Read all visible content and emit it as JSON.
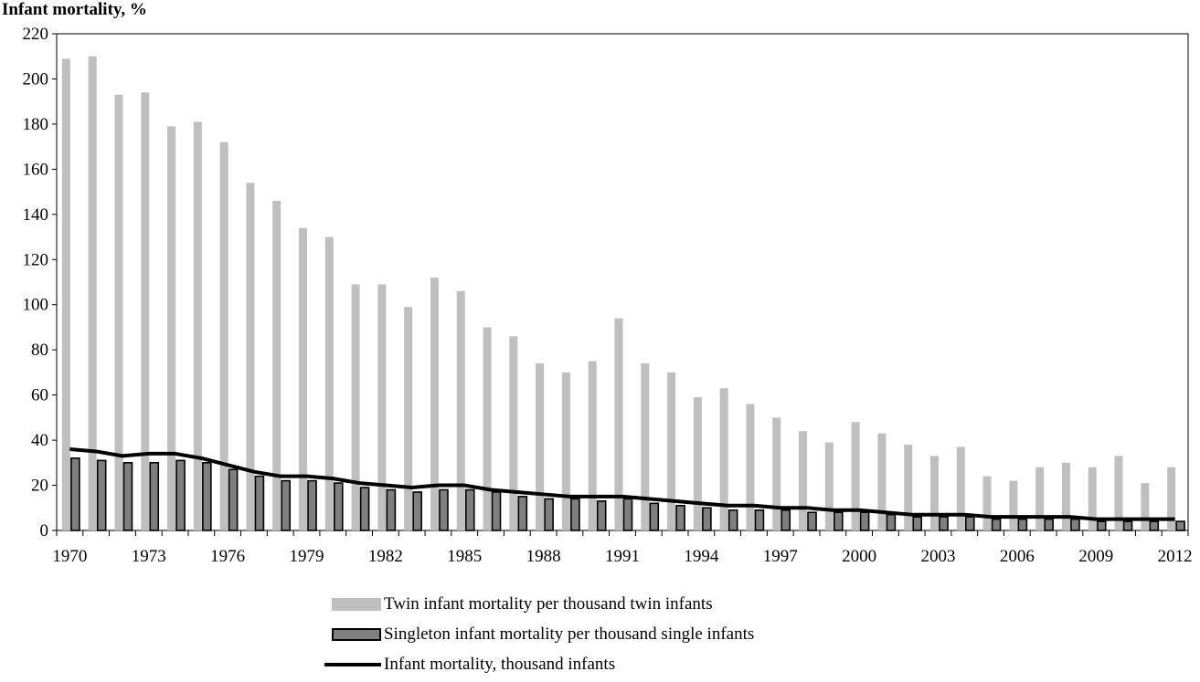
{
  "chart_data": {
    "type": "bar",
    "title": "Infant mortality, %",
    "years": [
      1970,
      1971,
      1972,
      1973,
      1974,
      1975,
      1976,
      1977,
      1978,
      1979,
      1980,
      1981,
      1982,
      1983,
      1984,
      1985,
      1986,
      1987,
      1988,
      1989,
      1990,
      1991,
      1992,
      1993,
      1994,
      1995,
      1996,
      1997,
      1998,
      1999,
      2000,
      2001,
      2002,
      2003,
      2004,
      2005,
      2006,
      2007,
      2008,
      2009,
      2010,
      2011,
      2012
    ],
    "x_tick_labels": [
      "1970",
      "1973",
      "1976",
      "1979",
      "1982",
      "1985",
      "1988",
      "1991",
      "1994",
      "1997",
      "2000",
      "2003",
      "2006",
      "2009",
      "2012"
    ],
    "y_tick_labels": [
      "0",
      "20",
      "40",
      "60",
      "80",
      "100",
      "120",
      "140",
      "160",
      "180",
      "200",
      "220"
    ],
    "ylim": [
      0,
      220
    ],
    "series": [
      {
        "name": "Twin infant mortality per thousand twin infants",
        "kind": "bar",
        "color": "#bfbfbf",
        "values": [
          209,
          210,
          193,
          194,
          179,
          181,
          172,
          154,
          146,
          134,
          130,
          109,
          109,
          99,
          112,
          106,
          90,
          86,
          74,
          70,
          75,
          94,
          74,
          70,
          59,
          63,
          56,
          50,
          44,
          39,
          48,
          43,
          38,
          33,
          37,
          24,
          22,
          28,
          30,
          28,
          33,
          21,
          28
        ]
      },
      {
        "name": "Singleton infant mortality per thousand single infants",
        "kind": "bar",
        "color": "#7f7f7f",
        "values": [
          32,
          31,
          30,
          30,
          31,
          30,
          27,
          24,
          22,
          22,
          21,
          19,
          18,
          17,
          18,
          18,
          17,
          15,
          14,
          14,
          13,
          14,
          12,
          11,
          10,
          9,
          9,
          9,
          8,
          8,
          8,
          7,
          6,
          6,
          6,
          5,
          5,
          5,
          5,
          4,
          4,
          4,
          4
        ]
      },
      {
        "name": "Infant mortality, thousand infants",
        "kind": "line",
        "color": "#000000",
        "values": [
          36,
          35,
          33,
          34,
          34,
          32,
          29,
          26,
          24,
          24,
          23,
          21,
          20,
          19,
          20,
          20,
          18,
          17,
          16,
          15,
          15,
          15,
          14,
          13,
          12,
          11,
          11,
          10,
          10,
          9,
          9,
          8,
          7,
          7,
          7,
          6,
          6,
          6,
          6,
          5,
          5,
          5,
          5
        ]
      }
    ],
    "legend_position": "bottom",
    "grid": false
  }
}
